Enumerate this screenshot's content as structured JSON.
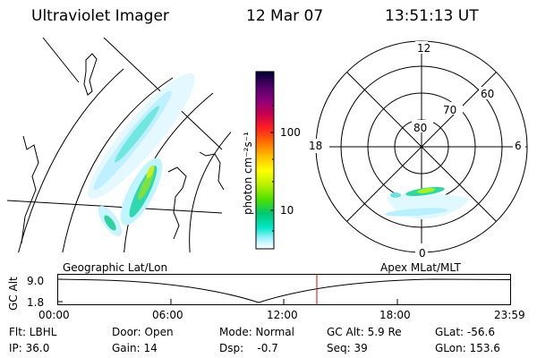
{
  "header": {
    "title": "Ultraviolet Imager",
    "date": "12 Mar 07",
    "time": "13:51:13 UT"
  },
  "colorbar": {
    "unit": "photon cm⁻²s⁻¹",
    "ticks": [
      "100",
      "10"
    ],
    "colors": [
      "#000033",
      "#4b0064",
      "#8a007a",
      "#c80050",
      "#ff2020",
      "#ff7000",
      "#ffc000",
      "#ffff00",
      "#b8f000",
      "#50e000",
      "#00c870",
      "#00e8c8",
      "#a0f0ff",
      "#ffffff"
    ]
  },
  "polar_plot": {
    "mlt_labels": {
      "top": "12",
      "left": "18",
      "right": "6",
      "bottom": "0"
    },
    "lat_labels": [
      "60",
      "70",
      "80"
    ]
  },
  "timeline": {
    "left_label": "Geographic Lat/Lon",
    "right_label": "Apex MLat/MLT",
    "axis_title": "GC Alt",
    "y_ticks": [
      "9.0",
      "1.8"
    ],
    "x_ticks": [
      "00:00",
      "06:00",
      "12:00",
      "18:00",
      "23:59"
    ],
    "marker_color": "#e00000"
  },
  "info": {
    "filter": "Flt: LBHL",
    "ip": "IP: 36.0",
    "door": "Door: Open",
    "gain": "Gain: 14",
    "mode": "Mode: Normal",
    "dsp": "Dsp:    -0.7",
    "gc_alt": "GC Alt: 5.9 Re",
    "seq": "Seq: 39",
    "glat": "GLat: -56.6",
    "glon": "GLon: 153.6"
  }
}
